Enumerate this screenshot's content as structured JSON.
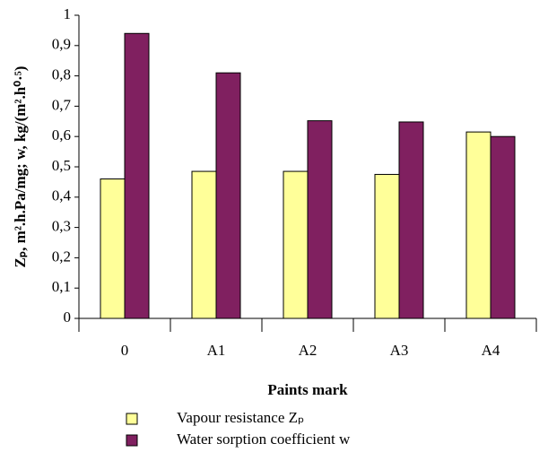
{
  "chart_data": {
    "type": "bar",
    "categories": [
      "0",
      "A1",
      "A2",
      "A3",
      "A4"
    ],
    "series": [
      {
        "name": "Vapour resistance Zₚ",
        "color": "#ffff99",
        "values": [
          0.46,
          0.485,
          0.485,
          0.475,
          0.615
        ]
      },
      {
        "name": "Water sorption coefficient w",
        "color": "#802060",
        "values": [
          0.94,
          0.81,
          0.652,
          0.648,
          0.6
        ]
      }
    ],
    "x_label": "Paints mark",
    "y_label": "Zₚ, m².h.Pa/mg; w, kg/(m².h⁰·⁵)",
    "ylim": [
      0,
      1
    ],
    "yticks": [
      0,
      {
        "value": 0.1,
        "label": "0,1"
      },
      {
        "value": 0.2,
        "label": "0,2"
      },
      {
        "value": 0.3,
        "label": "0,3"
      },
      {
        "value": 0.4,
        "label": "0,4"
      },
      {
        "value": 0.5,
        "label": "0,5"
      },
      {
        "value": 0.6,
        "label": "0,6"
      },
      {
        "value": 0.7,
        "label": "0,7"
      },
      {
        "value": 0.8,
        "label": "0,8"
      },
      {
        "value": 0.9,
        "label": "0,9"
      },
      1
    ],
    "grid": false
  }
}
